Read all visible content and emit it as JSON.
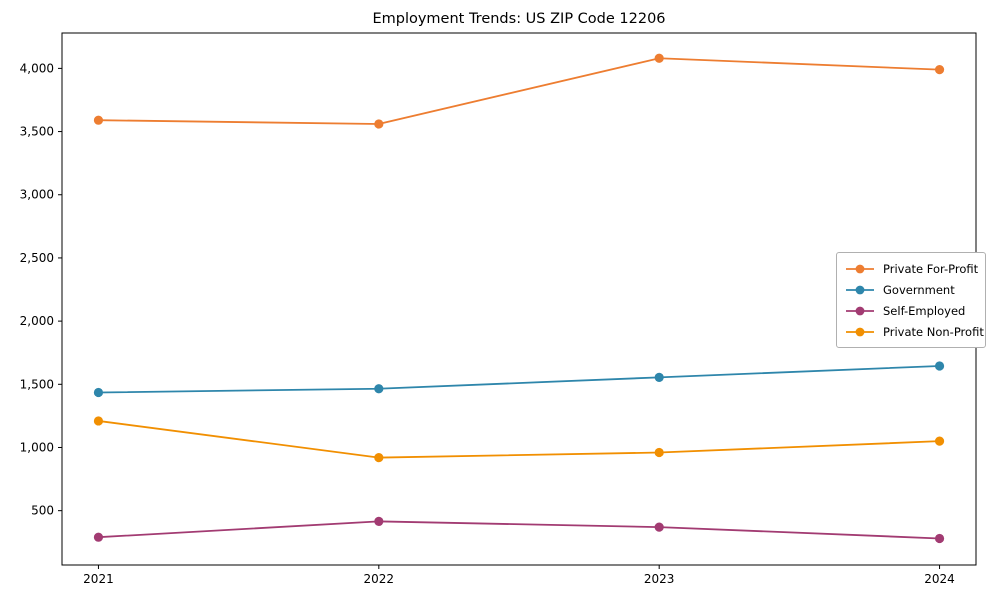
{
  "chart_data": {
    "type": "line",
    "title": "Employment Trends: US ZIP Code 12206",
    "x": [
      2021,
      2022,
      2023,
      2024
    ],
    "x_tick_labels": [
      "2021",
      "2022",
      "2023",
      "2024"
    ],
    "xlim": [
      2020.87,
      2024.13
    ],
    "ylim": [
      70,
      4280
    ],
    "yticks": [
      500,
      1000,
      1500,
      2000,
      2500,
      3000,
      3500,
      4000
    ],
    "ytick_labels": [
      "500",
      "1,000",
      "1,500",
      "2,000",
      "2,500",
      "3,000",
      "3,500",
      "4,000"
    ],
    "grid": false,
    "legend_position": "center right",
    "marker": "circle",
    "series": [
      {
        "name": "Private For-Profit",
        "color": "#ED7D31",
        "values": [
          3590,
          3560,
          4080,
          3990
        ]
      },
      {
        "name": "Government",
        "color": "#2E86AB",
        "values": [
          1435,
          1465,
          1555,
          1645
        ]
      },
      {
        "name": "Self-Employed",
        "color": "#A23B72",
        "values": [
          290,
          415,
          370,
          280
        ]
      },
      {
        "name": "Private Non-Profit",
        "color": "#F18F01",
        "values": [
          1210,
          920,
          960,
          1050
        ]
      }
    ]
  }
}
